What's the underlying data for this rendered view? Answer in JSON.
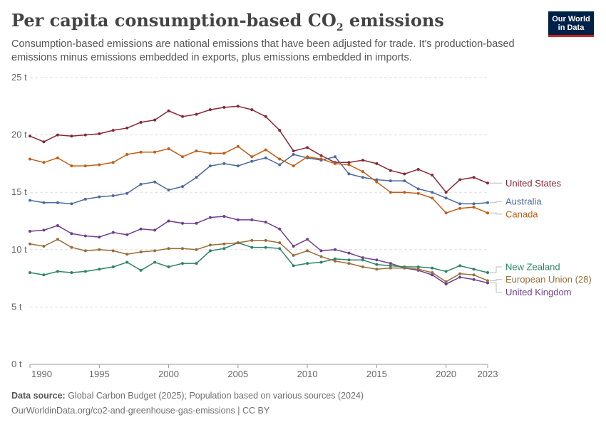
{
  "header": {
    "title": "Per capita consumption-based CO",
    "title_sub": "2",
    "title_suffix": " emissions",
    "subtitle": "Consumption-based emissions are national emissions that have been adjusted for trade. It's production-based emissions minus emissions embedded in exports, plus emissions embedded in imports.",
    "logo_line1": "Our World",
    "logo_line2": "in Data"
  },
  "footer": {
    "source_label": "Data source:",
    "source_text": " Global Carbon Budget (2025); Population based on various sources (2024)",
    "url_text": "OurWorldinData.org/co2-and-greenhouse-gas-emissions | CC BY"
  },
  "chart_data": {
    "type": "line",
    "x": [
      1990,
      1991,
      1992,
      1993,
      1994,
      1995,
      1996,
      1997,
      1998,
      1999,
      2000,
      2001,
      2002,
      2003,
      2004,
      2005,
      2006,
      2007,
      2008,
      2009,
      2010,
      2011,
      2012,
      2013,
      2014,
      2015,
      2016,
      2017,
      2018,
      2019,
      2020,
      2021,
      2022,
      2023
    ],
    "xticks": [
      1990,
      1995,
      2000,
      2005,
      2010,
      2015,
      2020,
      2023
    ],
    "xtick_labels": [
      "1990",
      "1995",
      "2000",
      "2005",
      "2010",
      "2015",
      "2020",
      "2023"
    ],
    "xlim": [
      1990,
      2023
    ],
    "ylim": [
      0,
      25
    ],
    "yticks": [
      0,
      5,
      10,
      15,
      20,
      25
    ],
    "ytick_labels": [
      "0 t",
      "5 t",
      "10 t",
      "15 t",
      "20 t",
      "25 t"
    ],
    "grid": "horizontal dashed",
    "legend": "right, end-of-line labels",
    "series": [
      {
        "name": "United States",
        "color": "#882637",
        "label_y": 15.8,
        "values": [
          19.9,
          19.4,
          20.0,
          19.9,
          20.0,
          20.1,
          20.4,
          20.6,
          21.1,
          21.3,
          22.1,
          21.6,
          21.8,
          22.2,
          22.4,
          22.5,
          22.2,
          21.6,
          20.4,
          18.6,
          18.9,
          18.2,
          17.6,
          17.6,
          17.8,
          17.5,
          16.9,
          16.6,
          17.0,
          16.5,
          15.0,
          16.1,
          16.3,
          15.8
        ]
      },
      {
        "name": "Australia",
        "color": "#4C6A9C",
        "label_y": 14.2,
        "values": [
          14.3,
          14.1,
          14.1,
          14.0,
          14.4,
          14.6,
          14.7,
          14.9,
          15.7,
          15.9,
          15.2,
          15.5,
          16.3,
          17.3,
          17.5,
          17.3,
          17.7,
          18.0,
          17.4,
          18.3,
          18.0,
          17.8,
          18.1,
          16.6,
          16.3,
          16.1,
          16.0,
          16.0,
          15.3,
          15.0,
          14.5,
          14.0,
          14.0,
          14.1
        ]
      },
      {
        "name": "Canada",
        "color": "#C15E16",
        "label_y": 13.1,
        "values": [
          17.9,
          17.6,
          18.0,
          17.3,
          17.3,
          17.4,
          17.6,
          18.3,
          18.5,
          18.5,
          18.8,
          18.1,
          18.6,
          18.4,
          18.4,
          19.0,
          18.1,
          18.7,
          17.9,
          17.3,
          18.1,
          17.9,
          17.5,
          17.4,
          16.8,
          15.9,
          15.0,
          15.0,
          14.9,
          14.5,
          13.2,
          13.6,
          13.7,
          13.2
        ]
      },
      {
        "name": "United Kingdom",
        "color": "#6D3E91",
        "label_y": 6.3,
        "values": [
          11.6,
          11.7,
          12.1,
          11.4,
          11.2,
          11.1,
          11.5,
          11.3,
          11.8,
          11.7,
          12.5,
          12.3,
          12.3,
          12.8,
          12.9,
          12.6,
          12.6,
          12.4,
          11.8,
          10.3,
          10.9,
          9.9,
          10.0,
          9.7,
          9.3,
          9.1,
          8.8,
          8.4,
          8.2,
          7.8,
          7.0,
          7.6,
          7.4,
          7.1
        ]
      },
      {
        "name": "New Zealand",
        "color": "#2C8465",
        "label_y": 8.5,
        "values": [
          8.0,
          7.8,
          8.1,
          8.0,
          8.1,
          8.3,
          8.5,
          8.9,
          8.2,
          8.9,
          8.5,
          8.8,
          8.8,
          9.9,
          10.1,
          10.6,
          10.2,
          10.2,
          10.1,
          8.6,
          8.8,
          8.9,
          9.2,
          9.1,
          9.1,
          8.7,
          8.6,
          8.5,
          8.5,
          8.4,
          8.1,
          8.6,
          8.3,
          8.0
        ]
      },
      {
        "name": "European Union (28)",
        "color": "#996D39",
        "label_y": 7.4,
        "values": [
          10.5,
          10.3,
          10.9,
          10.2,
          9.9,
          10.0,
          9.9,
          9.6,
          9.8,
          9.9,
          10.1,
          10.1,
          10.0,
          10.4,
          10.5,
          10.6,
          10.8,
          10.8,
          10.6,
          9.5,
          9.9,
          9.4,
          9.0,
          8.8,
          8.5,
          8.3,
          8.4,
          8.4,
          8.3,
          8.0,
          7.2,
          7.9,
          7.8,
          7.3
        ]
      }
    ]
  }
}
